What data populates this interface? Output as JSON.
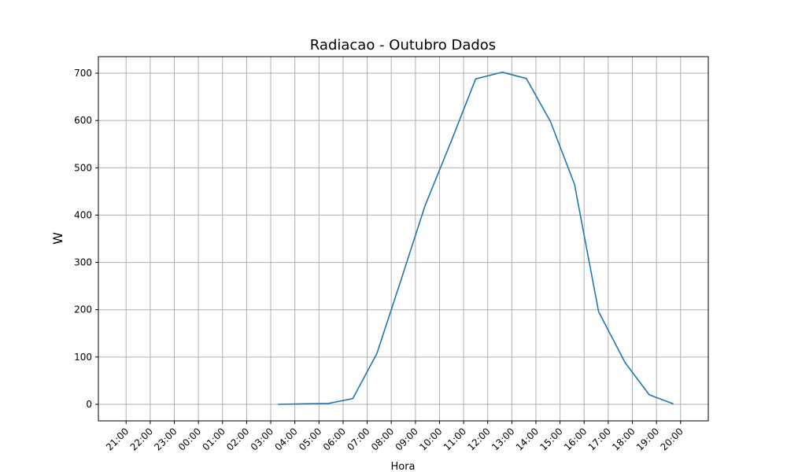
{
  "chart_data": {
    "type": "line",
    "title": "Radiacao - Outubro Dados",
    "xlabel": "Hora",
    "ylabel": "W",
    "categories": [
      "21:00",
      "22:00",
      "23:00",
      "00:00",
      "01:00",
      "02:00",
      "03:00",
      "04:00",
      "05:00",
      "06:00",
      "07:00",
      "08:00",
      "09:00",
      "10:00",
      "11:00",
      "12:00",
      "13:00",
      "14:00",
      "15:00",
      "16:00",
      "17:00",
      "18:00",
      "19:00",
      "20:00"
    ],
    "y_ticks": [
      0,
      100,
      200,
      300,
      400,
      500,
      600,
      700
    ],
    "ylim": [
      -35,
      735
    ],
    "grid": true,
    "color": "#1f77b4",
    "series": [
      {
        "points": [
          {
            "x": 6.3,
            "y": 0
          },
          {
            "x": 8.4,
            "y": 2
          },
          {
            "x": 9.4,
            "y": 12
          },
          {
            "x": 10.4,
            "y": 107
          },
          {
            "x": 11.4,
            "y": 262
          },
          {
            "x": 12.4,
            "y": 420
          },
          {
            "x": 13.5,
            "y": 558
          },
          {
            "x": 14.5,
            "y": 688
          },
          {
            "x": 15.6,
            "y": 702
          },
          {
            "x": 16.6,
            "y": 689
          },
          {
            "x": 17.6,
            "y": 598
          },
          {
            "x": 18.6,
            "y": 465
          },
          {
            "x": 19.6,
            "y": 196
          },
          {
            "x": 20.7,
            "y": 88
          },
          {
            "x": 21.7,
            "y": 20
          },
          {
            "x": 22.7,
            "y": 1
          }
        ]
      }
    ]
  }
}
